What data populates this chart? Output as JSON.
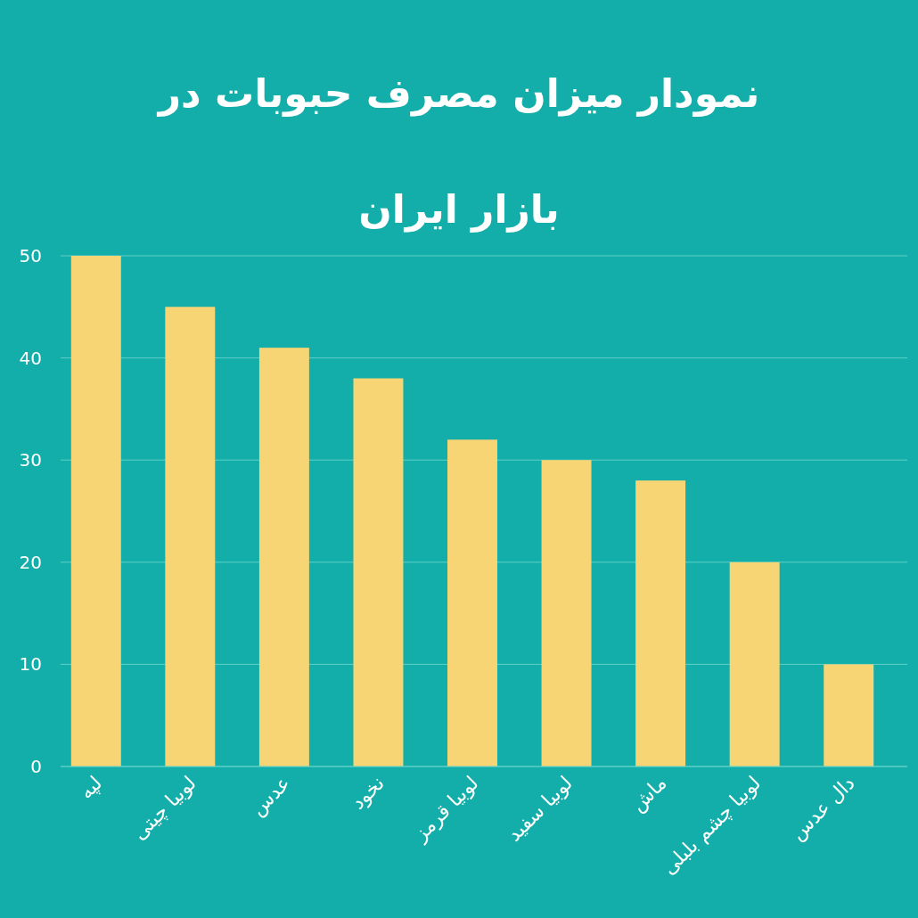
{
  "chart_data": {
    "type": "bar",
    "title": "نمودار میزان مصرف حبوبات در بازار ایران",
    "categories": [
      "لپه",
      "لوبیا چیتی",
      "عدس",
      "نخود",
      "لوبیا قرمز",
      "لوبیا سفید",
      "ماش",
      "لوبیا چشم بلبلی",
      "دال عدس"
    ],
    "values": [
      50,
      45,
      41,
      38,
      32,
      30,
      28,
      20,
      10
    ],
    "color": "#f7d574",
    "ylim": [
      0,
      50
    ],
    "yticks": [
      0,
      10,
      20,
      30,
      40,
      50
    ],
    "grid": "y"
  }
}
